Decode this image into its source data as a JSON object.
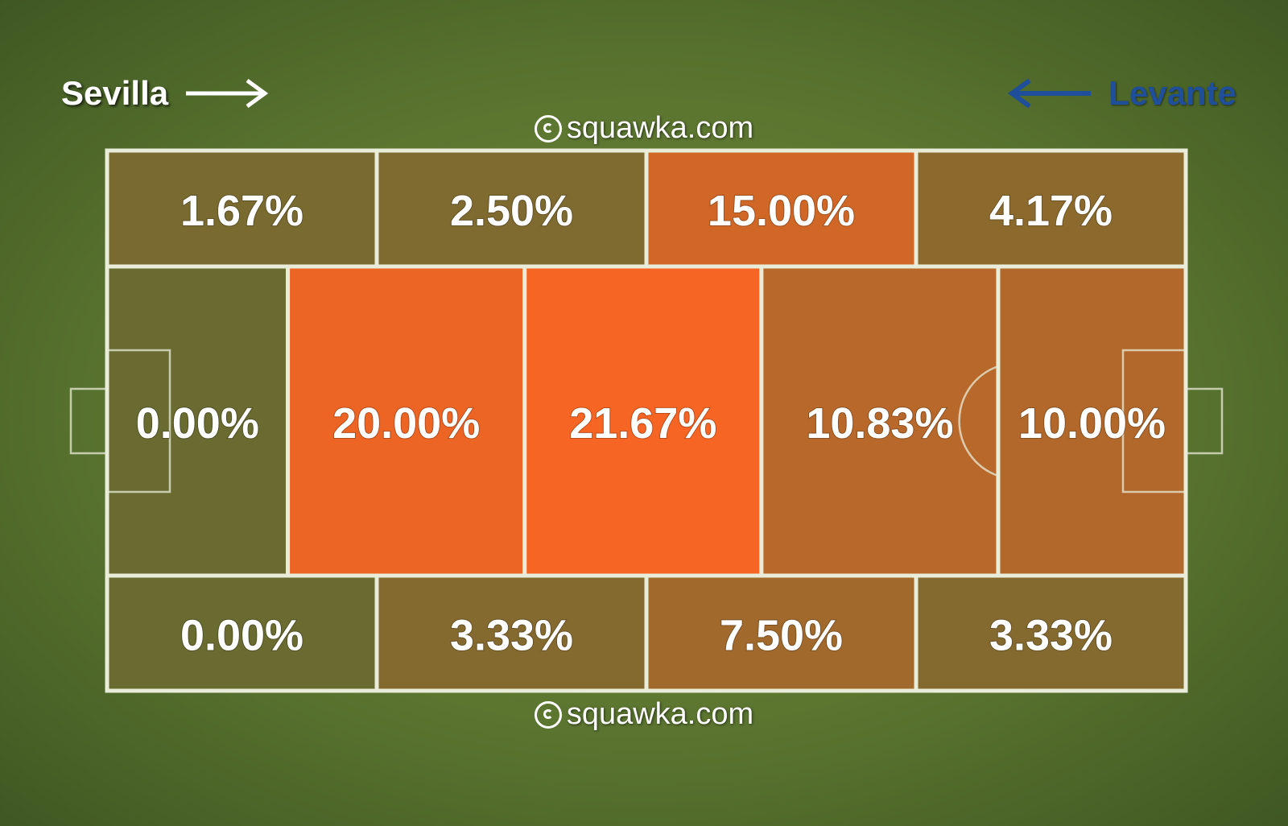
{
  "teams": {
    "home": "Sevilla",
    "away": "Levante"
  },
  "watermark": "squawka.com",
  "colors": {
    "pitch": "#5b7530",
    "low": "#6a6a32",
    "high": "#ff6423",
    "lines": "#e8ecd8",
    "away_team": "#1f4e9a"
  },
  "chart_data": {
    "type": "heatmap",
    "title": "",
    "unit": "%",
    "zones": [
      {
        "row": "top",
        "col": 1,
        "value": 1.67,
        "label": "1.67%"
      },
      {
        "row": "top",
        "col": 2,
        "value": 2.5,
        "label": "2.50%"
      },
      {
        "row": "top",
        "col": 3,
        "value": 15.0,
        "label": "15.00%"
      },
      {
        "row": "top",
        "col": 4,
        "value": 4.17,
        "label": "4.17%"
      },
      {
        "row": "middle",
        "col": 1,
        "value": 0.0,
        "label": "0.00%"
      },
      {
        "row": "middle",
        "col": 2,
        "value": 20.0,
        "label": "20.00%"
      },
      {
        "row": "middle",
        "col": 3,
        "value": 21.67,
        "label": "21.67%"
      },
      {
        "row": "middle",
        "col": 4,
        "value": 10.83,
        "label": "10.83%"
      },
      {
        "row": "middle",
        "col": 5,
        "value": 10.0,
        "label": "10.00%"
      },
      {
        "row": "bottom",
        "col": 1,
        "value": 0.0,
        "label": "0.00%"
      },
      {
        "row": "bottom",
        "col": 2,
        "value": 3.33,
        "label": "3.33%"
      },
      {
        "row": "bottom",
        "col": 3,
        "value": 7.5,
        "label": "7.50%"
      },
      {
        "row": "bottom",
        "col": 4,
        "value": 3.33,
        "label": "3.33%"
      }
    ]
  }
}
